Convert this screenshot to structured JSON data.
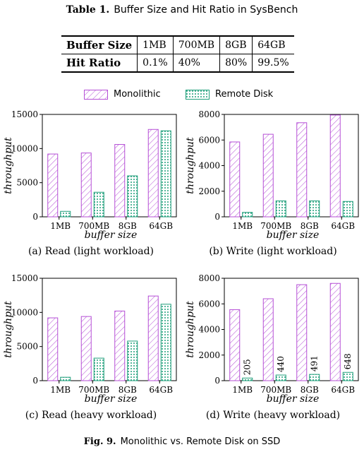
{
  "table": {
    "label": "Table 1.",
    "caption": "Buffer Size and Hit Ratio in SysBench",
    "rows": [
      [
        "Buffer Size",
        "1MB",
        "700MB",
        "8GB",
        "64GB"
      ],
      [
        "Hit Ratio",
        "0.1%",
        "40%",
        "80%",
        "99.5%"
      ]
    ]
  },
  "legend": {
    "monolithic": "Monolithic",
    "remote": "Remote Disk"
  },
  "colors": {
    "monolithic": "#b54fd6",
    "remote": "#1e9e7a"
  },
  "figure": {
    "label": "Fig. 9.",
    "caption": "Monolithic vs. Remote Disk on SSD"
  },
  "chart_data": [
    {
      "type": "bar",
      "caption": "(a) Read (light workload)",
      "categories": [
        "1MB",
        "700MB",
        "8GB",
        "64GB"
      ],
      "xlabel": "buffer size",
      "ylabel": "throughput",
      "ylim": [
        0,
        15000
      ],
      "yticks": [
        0,
        5000,
        10000,
        15000
      ],
      "series": [
        {
          "name": "Monolithic",
          "values": [
            9200,
            9350,
            10600,
            12800
          ]
        },
        {
          "name": "Remote Disk",
          "values": [
            800,
            3600,
            6000,
            12600
          ]
        }
      ],
      "bar_labels": []
    },
    {
      "type": "bar",
      "caption": "(b) Write (light workload)",
      "categories": [
        "1MB",
        "700MB",
        "8GB",
        "64GB"
      ],
      "xlabel": "buffer size",
      "ylabel": "throughput",
      "ylim": [
        0,
        8000
      ],
      "yticks": [
        0,
        2000,
        4000,
        6000,
        8000
      ],
      "series": [
        {
          "name": "Monolithic",
          "values": [
            5850,
            6450,
            7350,
            7950
          ]
        },
        {
          "name": "Remote Disk",
          "values": [
            350,
            1250,
            1250,
            1200
          ]
        }
      ],
      "bar_labels": []
    },
    {
      "type": "bar",
      "caption": "(c) Read (heavy workload)",
      "categories": [
        "1MB",
        "700MB",
        "8GB",
        "64GB"
      ],
      "xlabel": "buffer size",
      "ylabel": "throughput",
      "ylim": [
        0,
        15000
      ],
      "yticks": [
        0,
        5000,
        10000,
        15000
      ],
      "series": [
        {
          "name": "Monolithic",
          "values": [
            9200,
            9400,
            10200,
            12400
          ]
        },
        {
          "name": "Remote Disk",
          "values": [
            500,
            3300,
            5800,
            11200
          ]
        }
      ],
      "bar_labels": []
    },
    {
      "type": "bar",
      "caption": "(d) Write (heavy workload)",
      "categories": [
        "1MB",
        "700MB",
        "8GB",
        "64GB"
      ],
      "xlabel": "buffer size",
      "ylabel": "throughput",
      "ylim": [
        0,
        8000
      ],
      "yticks": [
        0,
        2000,
        4000,
        6000,
        8000
      ],
      "series": [
        {
          "name": "Monolithic",
          "values": [
            5550,
            6400,
            7500,
            7600
          ]
        },
        {
          "name": "Remote Disk",
          "values": [
            205,
            440,
            491,
            648
          ]
        }
      ],
      "bar_labels": [
        "205",
        "440",
        "491",
        "648"
      ]
    }
  ]
}
